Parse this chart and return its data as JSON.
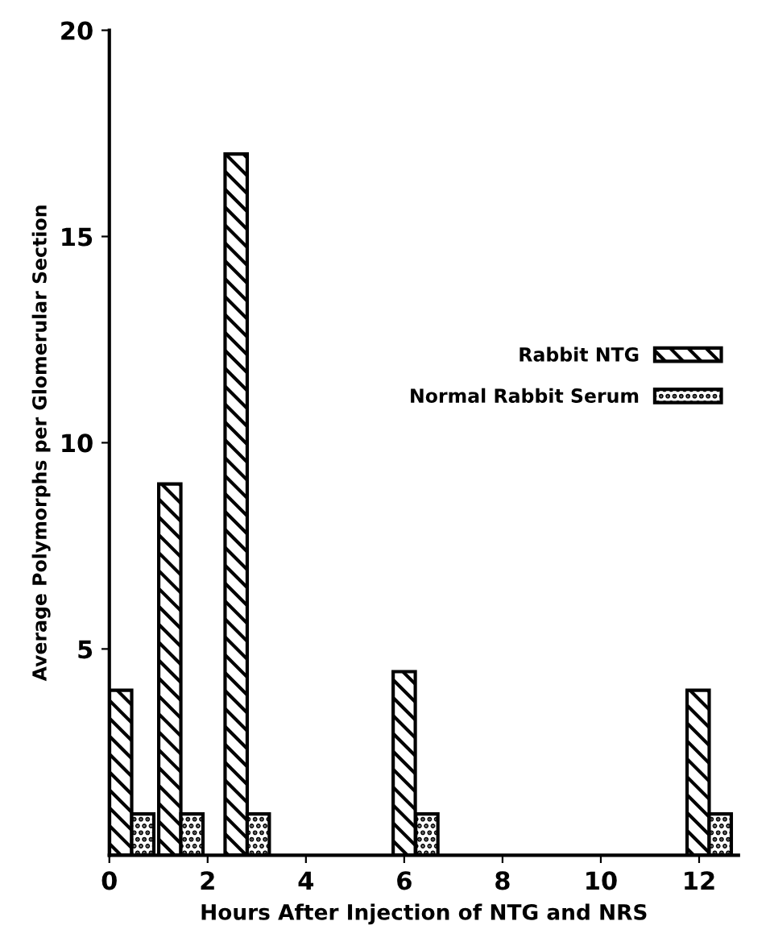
{
  "chart_data": {
    "type": "bar",
    "xlabel": "Hours After Injection of NTG and NRS",
    "ylabel": "Average Polymorphs per Glomerular Section",
    "series": [
      {
        "name": "Rabbit NTG",
        "color": "#000000",
        "x": [
          0.23,
          1.23,
          2.58,
          6.0,
          11.98
        ],
        "values": [
          4,
          9,
          17,
          4.45,
          4
        ]
      },
      {
        "name": "Normal Rabbit Serum",
        "color": "#000000",
        "x": [
          0.68,
          1.68,
          3.03,
          6.46,
          12.43
        ],
        "values": [
          1,
          1,
          1,
          1,
          1
        ]
      }
    ],
    "xlim": [
      0,
      12.8
    ],
    "xticks": [
      0,
      2,
      4,
      6,
      8,
      10,
      12
    ],
    "ylim": [
      0,
      20
    ],
    "yticks": [
      5,
      10,
      15,
      20
    ],
    "grid": false,
    "legend": "right"
  }
}
